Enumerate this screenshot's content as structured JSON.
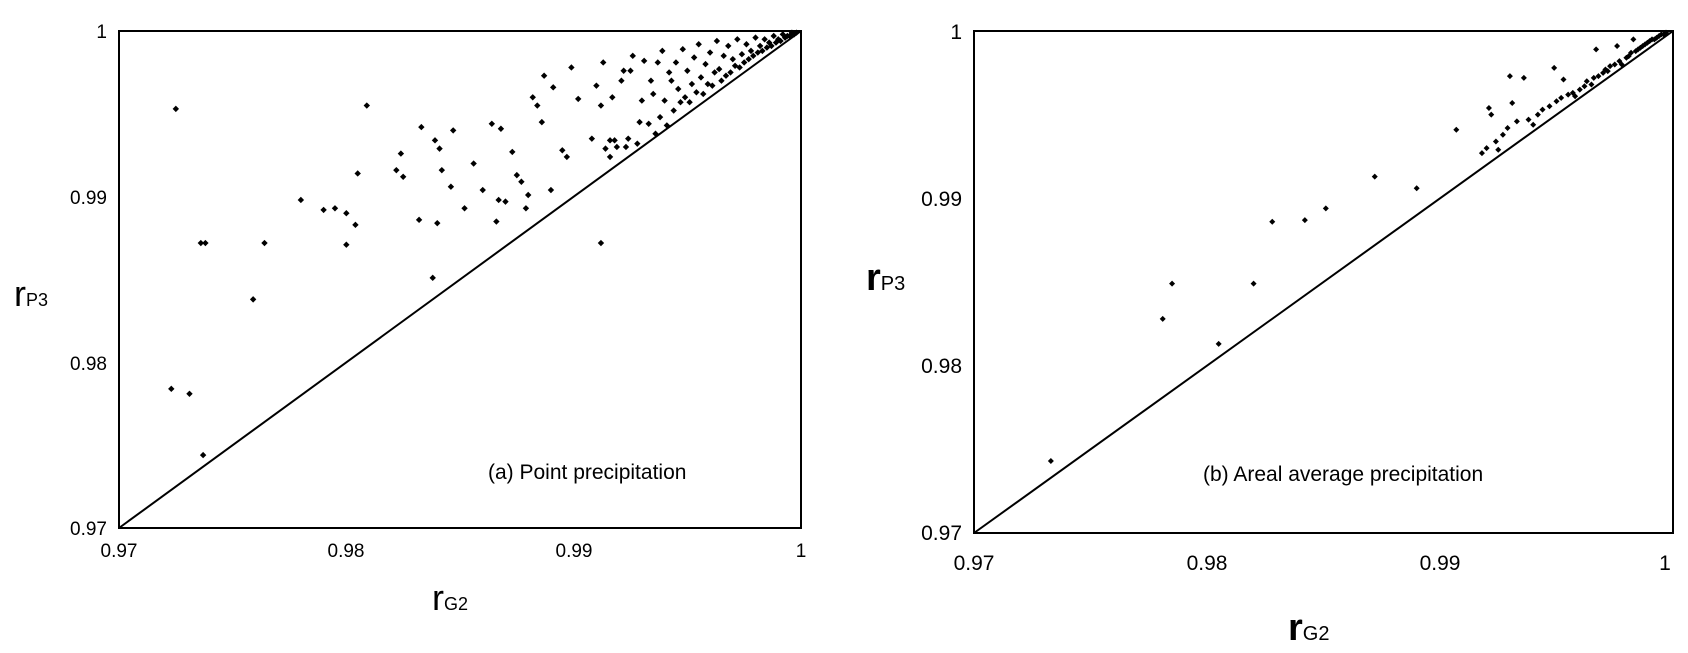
{
  "chart_data": [
    {
      "type": "scatter",
      "title": "",
      "annotation": "(a) Point precipitation",
      "xlabel": "r",
      "xlabel_sub": "G2",
      "ylabel": "r",
      "ylabel_sub": "P3",
      "xlim": [
        0.97,
        1
      ],
      "ylim": [
        0.97,
        1
      ],
      "xticks": [
        "0.97",
        "0.98",
        "0.99",
        "1"
      ],
      "yticks": [
        "0.97",
        "0.98",
        "0.99",
        "1"
      ],
      "grid": false,
      "reference_line": "1:1",
      "point_color": "#000000",
      "points": [
        [
          0.9725,
          0.9953
        ],
        [
          0.9723,
          0.9784
        ],
        [
          0.9731,
          0.9781
        ],
        [
          0.9737,
          0.9744
        ],
        [
          0.9736,
          0.9872
        ],
        [
          0.9738,
          0.9872
        ],
        [
          0.9759,
          0.9838
        ],
        [
          0.9764,
          0.9872
        ],
        [
          0.978,
          0.9898
        ],
        [
          0.979,
          0.9892
        ],
        [
          0.9795,
          0.9893
        ],
        [
          0.98,
          0.989
        ],
        [
          0.98,
          0.9871
        ],
        [
          0.9804,
          0.9883
        ],
        [
          0.9805,
          0.9914
        ],
        [
          0.9809,
          0.9955
        ],
        [
          0.9822,
          0.9916
        ],
        [
          0.9824,
          0.9926
        ],
        [
          0.9825,
          0.9912
        ],
        [
          0.9832,
          0.9886
        ],
        [
          0.9833,
          0.9942
        ],
        [
          0.9838,
          0.9851
        ],
        [
          0.9839,
          0.9934
        ],
        [
          0.984,
          0.9884
        ],
        [
          0.9841,
          0.9929
        ],
        [
          0.9842,
          0.9916
        ],
        [
          0.9846,
          0.9906
        ],
        [
          0.9847,
          0.994
        ],
        [
          0.9852,
          0.9893
        ],
        [
          0.9856,
          0.992
        ],
        [
          0.986,
          0.9904
        ],
        [
          0.9864,
          0.9944
        ],
        [
          0.9866,
          0.9885
        ],
        [
          0.9867,
          0.9898
        ],
        [
          0.9868,
          0.9941
        ],
        [
          0.987,
          0.9897
        ],
        [
          0.9873,
          0.9927
        ],
        [
          0.9875,
          0.9913
        ],
        [
          0.9877,
          0.9909
        ],
        [
          0.9879,
          0.9893
        ],
        [
          0.988,
          0.9901
        ],
        [
          0.9882,
          0.996
        ],
        [
          0.9884,
          0.9955
        ],
        [
          0.9886,
          0.9945
        ],
        [
          0.9887,
          0.9973
        ],
        [
          0.989,
          0.9904
        ],
        [
          0.9891,
          0.9966
        ],
        [
          0.9895,
          0.9928
        ],
        [
          0.9897,
          0.9924
        ],
        [
          0.9899,
          0.9978
        ],
        [
          0.9902,
          0.9959
        ],
        [
          0.9908,
          0.9935
        ],
        [
          0.991,
          0.9967
        ],
        [
          0.9912,
          0.9872
        ],
        [
          0.9912,
          0.9955
        ],
        [
          0.9913,
          0.9981
        ],
        [
          0.9914,
          0.9929
        ],
        [
          0.9916,
          0.9924
        ],
        [
          0.9916,
          0.9934
        ],
        [
          0.9917,
          0.996
        ],
        [
          0.9918,
          0.9934
        ],
        [
          0.9919,
          0.993
        ],
        [
          0.9921,
          0.997
        ],
        [
          0.9922,
          0.9976
        ],
        [
          0.9923,
          0.993
        ],
        [
          0.9924,
          0.9935
        ],
        [
          0.9925,
          0.9976
        ],
        [
          0.9926,
          0.9985
        ],
        [
          0.9928,
          0.9932
        ],
        [
          0.9929,
          0.9945
        ],
        [
          0.993,
          0.9958
        ],
        [
          0.9931,
          0.9982
        ],
        [
          0.9933,
          0.9944
        ],
        [
          0.9934,
          0.997
        ],
        [
          0.9935,
          0.9962
        ],
        [
          0.9936,
          0.9938
        ],
        [
          0.9937,
          0.9981
        ],
        [
          0.9938,
          0.9948
        ],
        [
          0.9939,
          0.9988
        ],
        [
          0.994,
          0.9958
        ],
        [
          0.9941,
          0.9943
        ],
        [
          0.9942,
          0.9975
        ],
        [
          0.9943,
          0.997
        ],
        [
          0.9944,
          0.9952
        ],
        [
          0.9945,
          0.9981
        ],
        [
          0.9946,
          0.9965
        ],
        [
          0.9947,
          0.9957
        ],
        [
          0.9948,
          0.9989
        ],
        [
          0.9949,
          0.996
        ],
        [
          0.995,
          0.9976
        ],
        [
          0.9951,
          0.9957
        ],
        [
          0.9952,
          0.9968
        ],
        [
          0.9953,
          0.9984
        ],
        [
          0.9954,
          0.9963
        ],
        [
          0.9955,
          0.9992
        ],
        [
          0.9956,
          0.9972
        ],
        [
          0.9957,
          0.9962
        ],
        [
          0.9958,
          0.998
        ],
        [
          0.9959,
          0.9968
        ],
        [
          0.996,
          0.9987
        ],
        [
          0.9961,
          0.9967
        ],
        [
          0.9962,
          0.9975
        ],
        [
          0.9963,
          0.9994
        ],
        [
          0.9964,
          0.9977
        ],
        [
          0.9965,
          0.997
        ],
        [
          0.9966,
          0.9985
        ],
        [
          0.9967,
          0.9973
        ],
        [
          0.9968,
          0.9991
        ],
        [
          0.9969,
          0.9975
        ],
        [
          0.997,
          0.9983
        ],
        [
          0.9971,
          0.9979
        ],
        [
          0.9972,
          0.9995
        ],
        [
          0.9973,
          0.9978
        ],
        [
          0.9974,
          0.9986
        ],
        [
          0.9975,
          0.9981
        ],
        [
          0.9976,
          0.9992
        ],
        [
          0.9977,
          0.9983
        ],
        [
          0.9978,
          0.9988
        ],
        [
          0.9979,
          0.9985
        ],
        [
          0.998,
          0.9996
        ],
        [
          0.9981,
          0.9987
        ],
        [
          0.9982,
          0.9991
        ],
        [
          0.9983,
          0.9988
        ],
        [
          0.9984,
          0.9995
        ],
        [
          0.9985,
          0.999
        ],
        [
          0.9986,
          0.9993
        ],
        [
          0.9987,
          0.9991
        ],
        [
          0.9988,
          0.9997
        ],
        [
          0.9989,
          0.9993
        ],
        [
          0.999,
          0.9995
        ],
        [
          0.9991,
          0.9994
        ],
        [
          0.9992,
          0.9998
        ],
        [
          0.9993,
          0.9996
        ],
        [
          0.9994,
          0.9997
        ],
        [
          0.9995,
          0.9997
        ],
        [
          0.9996,
          0.9999
        ],
        [
          0.9997,
          0.9998
        ],
        [
          0.9998,
          0.9999
        ]
      ]
    },
    {
      "type": "scatter",
      "title": "",
      "annotation": "(b) Areal average precipitation",
      "xlabel": "r",
      "xlabel_sub": "G2",
      "ylabel": "r",
      "ylabel_sub": "P3",
      "xlim": [
        0.97,
        1
      ],
      "ylim": [
        0.97,
        1
      ],
      "xticks": [
        "0.97",
        "0.98",
        "0.99",
        "1"
      ],
      "yticks": [
        "0.97",
        "0.98",
        "0.99",
        "1"
      ],
      "grid": false,
      "reference_line": "1:1",
      "point_color": "#000000",
      "points": [
        [
          0.9733,
          0.9743
        ],
        [
          0.9781,
          0.9828
        ],
        [
          0.9785,
          0.9849
        ],
        [
          0.9805,
          0.9813
        ],
        [
          0.982,
          0.9849
        ],
        [
          0.9828,
          0.9886
        ],
        [
          0.9842,
          0.9887
        ],
        [
          0.9851,
          0.9894
        ],
        [
          0.9872,
          0.9913
        ],
        [
          0.989,
          0.9906
        ],
        [
          0.9907,
          0.9941
        ],
        [
          0.9918,
          0.9927
        ],
        [
          0.992,
          0.993
        ],
        [
          0.9921,
          0.9954
        ],
        [
          0.9922,
          0.995
        ],
        [
          0.9924,
          0.9934
        ],
        [
          0.9925,
          0.9929
        ],
        [
          0.9927,
          0.9938
        ],
        [
          0.9929,
          0.9942
        ],
        [
          0.993,
          0.9973
        ],
        [
          0.9931,
          0.9957
        ],
        [
          0.9933,
          0.9946
        ],
        [
          0.9936,
          0.9972
        ],
        [
          0.9938,
          0.9947
        ],
        [
          0.994,
          0.9944
        ],
        [
          0.9942,
          0.995
        ],
        [
          0.9944,
          0.9953
        ],
        [
          0.9947,
          0.9955
        ],
        [
          0.9949,
          0.9978
        ],
        [
          0.995,
          0.9958
        ],
        [
          0.9952,
          0.996
        ],
        [
          0.9953,
          0.9971
        ],
        [
          0.9955,
          0.9962
        ],
        [
          0.9957,
          0.9963
        ],
        [
          0.9958,
          0.9961
        ],
        [
          0.996,
          0.9965
        ],
        [
          0.9962,
          0.9967
        ],
        [
          0.9963,
          0.997
        ],
        [
          0.9965,
          0.9968
        ],
        [
          0.9966,
          0.9972
        ],
        [
          0.9967,
          0.9989
        ],
        [
          0.9968,
          0.9973
        ],
        [
          0.997,
          0.9975
        ],
        [
          0.9971,
          0.9977
        ],
        [
          0.9972,
          0.9976
        ],
        [
          0.9973,
          0.9979
        ],
        [
          0.9975,
          0.998
        ],
        [
          0.9976,
          0.9991
        ],
        [
          0.9977,
          0.9982
        ],
        [
          0.9978,
          0.998
        ],
        [
          0.998,
          0.9984
        ],
        [
          0.9981,
          0.9985
        ],
        [
          0.9982,
          0.9987
        ],
        [
          0.9983,
          0.9995
        ],
        [
          0.9984,
          0.9988
        ],
        [
          0.9985,
          0.9989
        ],
        [
          0.9986,
          0.999
        ],
        [
          0.9987,
          0.9991
        ],
        [
          0.9988,
          0.9992
        ],
        [
          0.9989,
          0.9993
        ],
        [
          0.999,
          0.9994
        ],
        [
          0.9991,
          0.9995
        ],
        [
          0.9992,
          0.9995
        ],
        [
          0.9993,
          0.9996
        ],
        [
          0.9994,
          0.9997
        ],
        [
          0.9995,
          0.9998
        ],
        [
          0.9996,
          0.9998
        ],
        [
          0.9997,
          0.9999
        ]
      ]
    }
  ]
}
